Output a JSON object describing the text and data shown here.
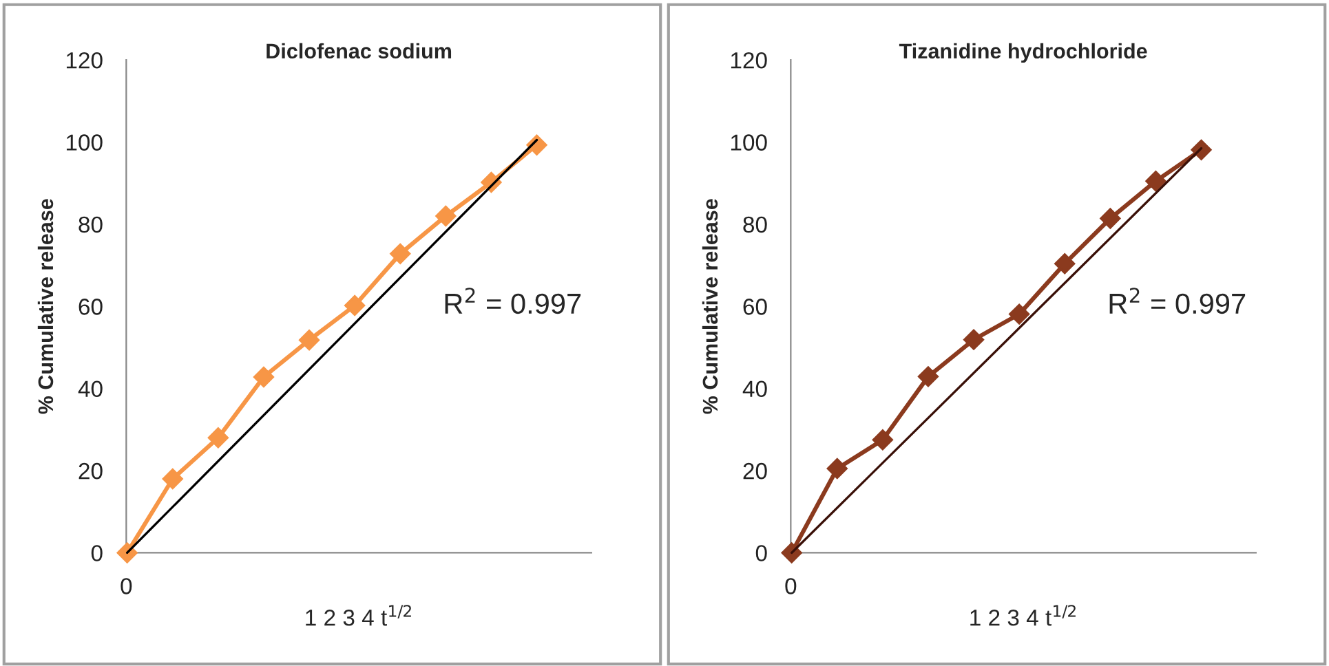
{
  "chart_data": [
    {
      "type": "line",
      "title": "Diclofenac sodium",
      "xlabel": "1 2 3 4 t$^{1/2}$",
      "ylabel": "% Cumulative release",
      "categories": [
        null,
        null,
        null,
        null,
        null,
        null,
        null,
        null,
        null,
        null
      ],
      "series": [
        {
          "color": "#f79646",
          "marker": "diamond",
          "values": [
            0,
            18,
            28,
            42.8,
            51.8,
            60.2,
            72.8,
            82,
            90.2,
            99.3
          ]
        },
        {
          "color": "#000000",
          "marker": "none",
          "values": [
            0,
            null,
            null,
            null,
            null,
            null,
            null,
            null,
            null,
            100.5
          ]
        }
      ],
      "ylim": [
        0,
        120
      ],
      "yticks": [
        0,
        20,
        40,
        60,
        80,
        100,
        120
      ],
      "annotations": [
        "R$^{2}$ = 0.997",
        "0"
      ]
    },
    {
      "type": "line",
      "title": "Tizanidine hydrochloride",
      "xlabel": "1 2 3 4 t$^{1/2}$",
      "ylabel": "% Cumulative release",
      "categories": [
        null,
        null,
        null,
        null,
        null,
        null,
        null,
        null,
        null,
        null
      ],
      "series": [
        {
          "color": "#8b3a1e",
          "marker": "diamond",
          "values": [
            0,
            20.5,
            27.5,
            42.9,
            51.9,
            58.1,
            70.4,
            81.4,
            90.5,
            98.1
          ]
        },
        {
          "color": "#3a1008",
          "marker": "none",
          "values": [
            0,
            null,
            null,
            null,
            null,
            null,
            null,
            null,
            null,
            98.5
          ]
        }
      ],
      "ylim": [
        0,
        120
      ],
      "yticks": [
        0,
        20,
        40,
        60,
        80,
        100,
        120
      ],
      "annotations": [
        "R$^{2}$ = 0.997",
        "0"
      ]
    }
  ]
}
